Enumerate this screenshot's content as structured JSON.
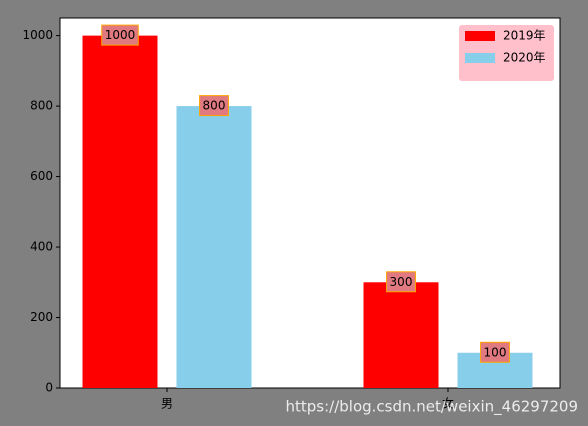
{
  "chart_data": {
    "type": "bar",
    "categories": [
      "男",
      "女"
    ],
    "series": [
      {
        "name": "2019年",
        "color": "#ff0000",
        "values": [
          1000,
          300
        ]
      },
      {
        "name": "2020年",
        "color": "#87ceeb",
        "values": [
          800,
          100
        ]
      }
    ],
    "ylim": [
      0,
      1050
    ],
    "yticks": [
      0,
      200,
      400,
      600,
      800,
      1000
    ],
    "legend": "upper right",
    "legend_color": "#ffc0cb",
    "label_box_color": "#e07a80",
    "label_box_edge": "#ffa500"
  },
  "watermark": "https://blog.csdn.net/weixin_46297209"
}
